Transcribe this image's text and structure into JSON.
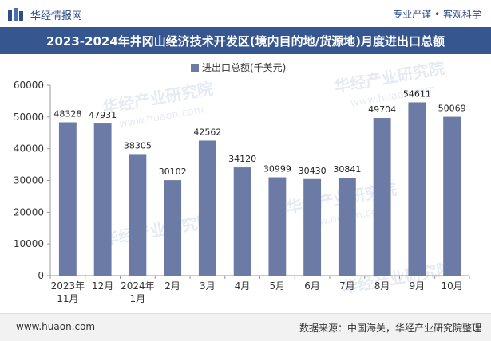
{
  "header": {
    "brand": "华经情报网",
    "tagline": "专业严谨 • 客观科学",
    "title": "2023-2024年井冈山经济技术开发区(境内目的地/货源地)月度进出口总额"
  },
  "footer": {
    "site": "www.huaon.com",
    "source": "数据来源：中国海关，华经产业研究院整理"
  },
  "watermark": {
    "text": "华经产业研究院",
    "url": "www.huaon.com"
  },
  "colors": {
    "bar": "#6b7ba6",
    "title_bg": "#36568f",
    "brand": "#2d4d8c"
  },
  "chart_data": {
    "type": "bar",
    "title": "2023-2024年井冈山经济技术开发区(境内目的地/货源地)月度进出口总额",
    "legend": "进出口总额(千美元)",
    "legend_position": "top-center",
    "xlabel": "",
    "ylabel": "",
    "ylim": [
      0,
      60000
    ],
    "yticks": [
      "0",
      "10000",
      "20000",
      "30000",
      "40000",
      "50000",
      "60000"
    ],
    "grid": false,
    "categories": [
      [
        "2023年",
        "11月"
      ],
      [
        "12月"
      ],
      [
        "2024年",
        "1月"
      ],
      [
        "2月"
      ],
      [
        "3月"
      ],
      [
        "4月"
      ],
      [
        "5月"
      ],
      [
        "6月"
      ],
      [
        "7月"
      ],
      [
        "8月"
      ],
      [
        "9月"
      ],
      [
        "10月"
      ]
    ],
    "values": [
      48328,
      47931,
      38305,
      30102,
      42562,
      34120,
      30999,
      30430,
      30841,
      49704,
      54611,
      50069
    ]
  }
}
